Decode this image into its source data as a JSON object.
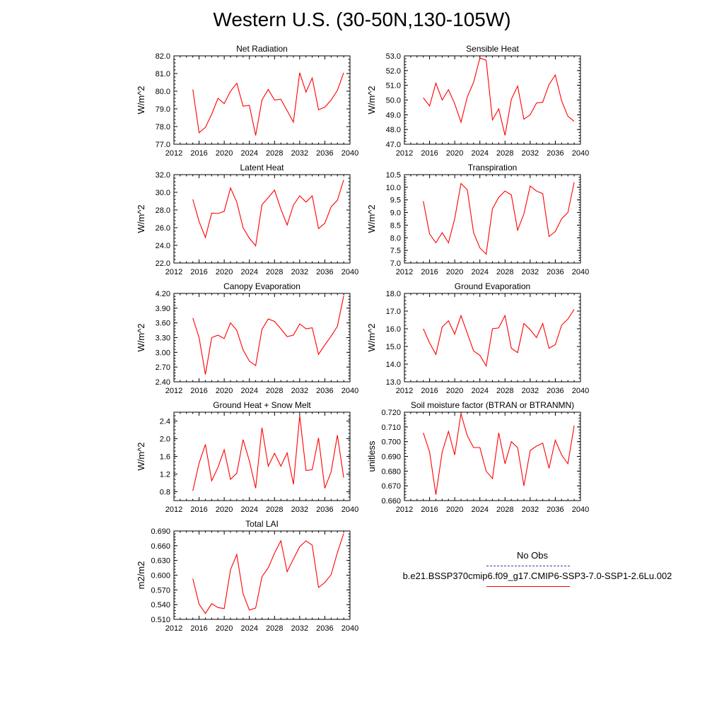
{
  "title": "Western U.S. (30-50N,130-105W)",
  "colors": {
    "model": "#ff0000",
    "obs": "#3b3b9e",
    "axis": "#000000"
  },
  "legend": {
    "obs_label": "No Obs",
    "case_label": "b.e21.BSSP370cmip6.f09_g17.CMIP6-SSP3-7.0-SSP1-2.6Lu.002"
  },
  "chart_data": [
    {
      "type": "line",
      "title": "Net Radiation",
      "ylabel": "W/m^2",
      "xlim": [
        2012,
        2040
      ],
      "ylim": [
        77.0,
        82.0
      ],
      "yticks": [
        "77.0",
        "78.0",
        "79.0",
        "80.0",
        "81.0",
        "82.0"
      ],
      "xticks": [
        "2012",
        "2016",
        "2020",
        "2024",
        "2028",
        "2032",
        "2036",
        "2040"
      ],
      "x": [
        2015,
        2016,
        2017,
        2018,
        2019,
        2020,
        2021,
        2022,
        2023,
        2024,
        2025,
        2026,
        2027,
        2028,
        2029,
        2030,
        2031,
        2032,
        2033,
        2034,
        2035,
        2036,
        2037,
        2038,
        2039
      ],
      "values": [
        80.1,
        77.65,
        77.95,
        78.7,
        79.6,
        79.3,
        80.0,
        80.45,
        79.15,
        79.2,
        77.5,
        79.5,
        80.1,
        79.5,
        79.55,
        78.9,
        78.25,
        81.05,
        79.95,
        80.75,
        78.95,
        79.1,
        79.5,
        80.05,
        81.05
      ]
    },
    {
      "type": "line",
      "title": "Sensible Heat",
      "ylabel": "W/m^2",
      "xlim": [
        2012,
        2040
      ],
      "ylim": [
        47.0,
        53.0
      ],
      "yticks": [
        "47.0",
        "48.0",
        "49.0",
        "50.0",
        "51.0",
        "52.0",
        "53.0"
      ],
      "xticks": [
        "2012",
        "2016",
        "2020",
        "2024",
        "2028",
        "2032",
        "2036",
        "2040"
      ],
      "x": [
        2015,
        2016,
        2017,
        2018,
        2019,
        2020,
        2021,
        2022,
        2023,
        2024,
        2025,
        2026,
        2027,
        2028,
        2029,
        2030,
        2031,
        2032,
        2033,
        2034,
        2035,
        2036,
        2037,
        2038,
        2039
      ],
      "values": [
        50.15,
        49.6,
        51.15,
        50.0,
        50.7,
        49.75,
        48.5,
        50.2,
        51.2,
        52.85,
        52.7,
        48.65,
        49.4,
        47.6,
        50.05,
        50.95,
        48.7,
        49.0,
        49.8,
        49.85,
        51.05,
        51.7,
        49.95,
        48.9,
        48.55
      ]
    },
    {
      "type": "line",
      "title": "Latent Heat",
      "ylabel": "W/m^2",
      "xlim": [
        2012,
        2040
      ],
      "ylim": [
        22.0,
        32.0
      ],
      "yticks": [
        "22.0",
        "24.0",
        "26.0",
        "28.0",
        "30.0",
        "32.0"
      ],
      "xticks": [
        "2012",
        "2016",
        "2020",
        "2024",
        "2028",
        "2032",
        "2036",
        "2040"
      ],
      "x": [
        2015,
        2016,
        2017,
        2018,
        2019,
        2020,
        2021,
        2022,
        2023,
        2024,
        2025,
        2026,
        2027,
        2028,
        2029,
        2030,
        2031,
        2032,
        2033,
        2034,
        2035,
        2036,
        2037,
        2038,
        2039
      ],
      "values": [
        29.2,
        26.7,
        24.9,
        27.65,
        27.6,
        27.85,
        30.5,
        28.9,
        26.0,
        24.8,
        23.95,
        28.6,
        29.4,
        30.25,
        28.1,
        26.3,
        28.55,
        29.6,
        28.9,
        29.6,
        25.9,
        26.5,
        28.35,
        29.1,
        31.4
      ]
    },
    {
      "type": "line",
      "title": "Transpiration",
      "ylabel": "W/m^2",
      "xlim": [
        2012,
        2040
      ],
      "ylim": [
        7.0,
        10.5
      ],
      "yticks": [
        "7.0",
        "7.5",
        "8.0",
        "8.5",
        "9.0",
        "9.5",
        "10.0",
        "10.5"
      ],
      "xticks": [
        "2012",
        "2016",
        "2020",
        "2024",
        "2028",
        "2032",
        "2036",
        "2040"
      ],
      "x": [
        2015,
        2016,
        2017,
        2018,
        2019,
        2020,
        2021,
        2022,
        2023,
        2024,
        2025,
        2026,
        2027,
        2028,
        2029,
        2030,
        2031,
        2032,
        2033,
        2034,
        2035,
        2036,
        2037,
        2038,
        2039
      ],
      "values": [
        9.45,
        8.15,
        7.8,
        8.2,
        7.8,
        8.75,
        10.15,
        9.9,
        8.2,
        7.6,
        7.35,
        9.15,
        9.6,
        9.85,
        9.7,
        8.3,
        8.95,
        10.05,
        9.85,
        9.75,
        8.05,
        8.25,
        8.75,
        9.0,
        10.2
      ]
    },
    {
      "type": "line",
      "title": "Canopy Evaporation",
      "ylabel": "W/m^2",
      "xlim": [
        2012,
        2040
      ],
      "ylim": [
        2.4,
        4.2
      ],
      "yticks": [
        "2.40",
        "2.70",
        "3.00",
        "3.30",
        "3.60",
        "3.90",
        "4.20"
      ],
      "xticks": [
        "2012",
        "2016",
        "2020",
        "2024",
        "2028",
        "2032",
        "2036",
        "2040"
      ],
      "x": [
        2015,
        2016,
        2017,
        2018,
        2019,
        2020,
        2021,
        2022,
        2023,
        2024,
        2025,
        2026,
        2027,
        2028,
        2029,
        2030,
        2031,
        2032,
        2033,
        2034,
        2035,
        2036,
        2037,
        2038,
        2039
      ],
      "values": [
        3.7,
        3.3,
        2.55,
        3.3,
        3.35,
        3.28,
        3.6,
        3.45,
        3.05,
        2.82,
        2.73,
        3.47,
        3.68,
        3.63,
        3.48,
        3.32,
        3.35,
        3.58,
        3.48,
        3.5,
        2.96,
        3.15,
        3.33,
        3.53,
        4.15
      ]
    },
    {
      "type": "line",
      "title": "Ground Evaporation",
      "ylabel": "W/m^2",
      "xlim": [
        2012,
        2040
      ],
      "ylim": [
        13.0,
        18.0
      ],
      "yticks": [
        "13.0",
        "14.0",
        "15.0",
        "16.0",
        "17.0",
        "18.0"
      ],
      "xticks": [
        "2012",
        "2016",
        "2020",
        "2024",
        "2028",
        "2032",
        "2036",
        "2040"
      ],
      "x": [
        2015,
        2016,
        2017,
        2018,
        2019,
        2020,
        2021,
        2022,
        2023,
        2024,
        2025,
        2026,
        2027,
        2028,
        2029,
        2030,
        2031,
        2032,
        2033,
        2034,
        2035,
        2036,
        2037,
        2038,
        2039
      ],
      "values": [
        16.0,
        15.2,
        14.55,
        16.1,
        16.45,
        15.7,
        16.75,
        15.75,
        14.75,
        14.5,
        13.9,
        16.0,
        16.05,
        16.75,
        14.9,
        14.65,
        16.3,
        15.95,
        15.5,
        16.3,
        14.9,
        15.1,
        16.2,
        16.55,
        17.1
      ]
    },
    {
      "type": "line",
      "title": "Ground Heat + Snow Melt",
      "ylabel": "W/m^2",
      "xlim": [
        2012,
        2040
      ],
      "ylim": [
        0.6,
        2.6
      ],
      "yticks": [
        "0.8",
        "1.2",
        "1.6",
        "2.0",
        "2.4"
      ],
      "xticks": [
        "2012",
        "2016",
        "2020",
        "2024",
        "2028",
        "2032",
        "2036",
        "2040"
      ],
      "x": [
        2015,
        2016,
        2017,
        2018,
        2019,
        2020,
        2021,
        2022,
        2023,
        2024,
        2025,
        2026,
        2027,
        2028,
        2029,
        2030,
        2031,
        2032,
        2033,
        2034,
        2035,
        2036,
        2037,
        2038,
        2039
      ],
      "values": [
        0.82,
        1.45,
        1.87,
        1.05,
        1.35,
        1.75,
        1.08,
        1.22,
        1.98,
        1.5,
        0.88,
        2.25,
        1.38,
        1.67,
        1.38,
        1.68,
        0.97,
        2.52,
        1.28,
        1.3,
        2.02,
        0.88,
        1.25,
        2.08,
        1.12
      ]
    },
    {
      "type": "line",
      "title": "Soil moisture factor (BTRAN or BTRANMN)",
      "ylabel": "unitless",
      "xlim": [
        2012,
        2040
      ],
      "ylim": [
        0.66,
        0.72
      ],
      "yticks": [
        "0.660",
        "0.670",
        "0.680",
        "0.690",
        "0.700",
        "0.710",
        "0.720"
      ],
      "xticks": [
        "2012",
        "2016",
        "2020",
        "2024",
        "2028",
        "2032",
        "2036",
        "2040"
      ],
      "x": [
        2015,
        2016,
        2017,
        2018,
        2019,
        2020,
        2021,
        2022,
        2023,
        2024,
        2025,
        2026,
        2027,
        2028,
        2029,
        2030,
        2031,
        2032,
        2033,
        2034,
        2035,
        2036,
        2037,
        2038,
        2039
      ],
      "values": [
        0.706,
        0.693,
        0.664,
        0.693,
        0.707,
        0.691,
        0.719,
        0.704,
        0.696,
        0.696,
        0.68,
        0.675,
        0.706,
        0.685,
        0.7,
        0.696,
        0.67,
        0.694,
        0.697,
        0.699,
        0.682,
        0.701,
        0.691,
        0.685,
        0.711
      ]
    },
    {
      "type": "line",
      "title": "Total LAI",
      "ylabel": "m2/m2",
      "xlim": [
        2012,
        2040
      ],
      "ylim": [
        0.51,
        0.69
      ],
      "yticks": [
        "0.510",
        "0.540",
        "0.570",
        "0.600",
        "0.630",
        "0.660",
        "0.690"
      ],
      "xticks": [
        "2012",
        "2016",
        "2020",
        "2024",
        "2028",
        "2032",
        "2036",
        "2040"
      ],
      "x": [
        2015,
        2016,
        2017,
        2018,
        2019,
        2020,
        2021,
        2022,
        2023,
        2024,
        2025,
        2026,
        2027,
        2028,
        2029,
        2030,
        2031,
        2032,
        2033,
        2034,
        2035,
        2036,
        2037,
        2038,
        2039
      ],
      "values": [
        0.593,
        0.541,
        0.522,
        0.542,
        0.534,
        0.532,
        0.611,
        0.642,
        0.562,
        0.529,
        0.533,
        0.597,
        0.615,
        0.645,
        0.67,
        0.607,
        0.633,
        0.658,
        0.67,
        0.661,
        0.575,
        0.585,
        0.601,
        0.646,
        0.685
      ]
    }
  ]
}
